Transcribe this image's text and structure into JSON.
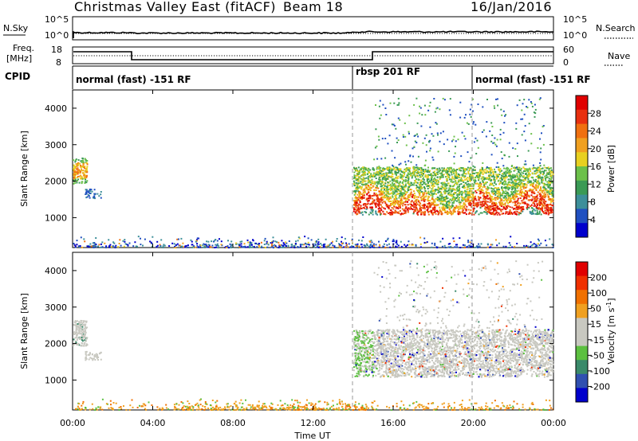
{
  "header": {
    "title": "Christmas Valley East (fitACF)",
    "beam": "Beam 18",
    "date": "16/Jan/2016"
  },
  "strips": {
    "nsky_label": "N.Sky",
    "nsearch_label": "N.Search",
    "noise_left_ticks": [
      "10^5",
      "10^0"
    ],
    "noise_right_ticks": [
      "10^5",
      "10^0"
    ],
    "freq_label_1": "Freq.",
    "freq_label_2": "[MHz]",
    "freq_ticks": [
      "18",
      "8"
    ],
    "nave_label": "Nave",
    "nave_ticks": [
      "60",
      "0"
    ],
    "cpid_label": "CPID",
    "cpid_segments": [
      {
        "start": 0,
        "end": 14,
        "label": "normal (fast) -151 RF"
      },
      {
        "start": 14,
        "end": 20,
        "label": "rbsp 201 RF"
      },
      {
        "start": 20,
        "end": 24,
        "label": "normal (fast) -151 RF"
      }
    ]
  },
  "colors": {
    "power_scale": [
      "#0000cc",
      "#2050c0",
      "#3d8f9a",
      "#3a9a55",
      "#6cc04a",
      "#e8d020",
      "#f0a020",
      "#f07010",
      "#e83010",
      "#e00000"
    ],
    "velocity_scale": [
      "#0000cc",
      "#3050b0",
      "#3a8a6a",
      "#5cc040",
      "#c8c8c0",
      "#c8c8c0",
      "#f0a020",
      "#f07000",
      "#f03000",
      "#e00000"
    ]
  },
  "chart_data": [
    {
      "type": "heatmap",
      "panel": "power",
      "ylabel": "Slant Range [km]",
      "ylim": [
        180,
        4500
      ],
      "yticks": [
        "4000",
        "3000",
        "2000",
        "1000"
      ],
      "xlim": [
        0,
        24
      ],
      "xticks": [
        "00:00",
        "04:00",
        "08:00",
        "12:00",
        "16:00",
        "20:00",
        "00:00"
      ],
      "colorbar_label": "Power [dB]",
      "colorbar_ticks": [
        "28",
        "24",
        "20",
        "16",
        "12",
        "8",
        "4"
      ],
      "features": [
        {
          "name": "early echo",
          "t": [
            0.0,
            0.6
          ],
          "range": [
            2000,
            2600
          ],
          "level": 8
        },
        {
          "name": "afternoon-evening band",
          "t": [
            14.0,
            23.9
          ],
          "range": [
            1000,
            2300
          ],
          "level": 8
        },
        {
          "name": "near-range ground scatter",
          "t": [
            0.0,
            24.0
          ],
          "range": [
            180,
            500
          ],
          "level": 1
        }
      ]
    },
    {
      "type": "heatmap",
      "panel": "velocity",
      "ylabel": "Slant Range [km]",
      "ylim": [
        180,
        4500
      ],
      "yticks": [
        "4000",
        "3000",
        "2000",
        "1000"
      ],
      "xlim": [
        0,
        24
      ],
      "xticks": [
        "00:00",
        "04:00",
        "08:00",
        "12:00",
        "16:00",
        "20:00",
        "00:00"
      ],
      "xlabel": "Time UT",
      "colorbar_label": "Velocity [m s^-1]",
      "colorbar_ticks": [
        "200",
        "100",
        "50",
        "15",
        "-15",
        "-50",
        "-100",
        "-200"
      ]
    }
  ]
}
